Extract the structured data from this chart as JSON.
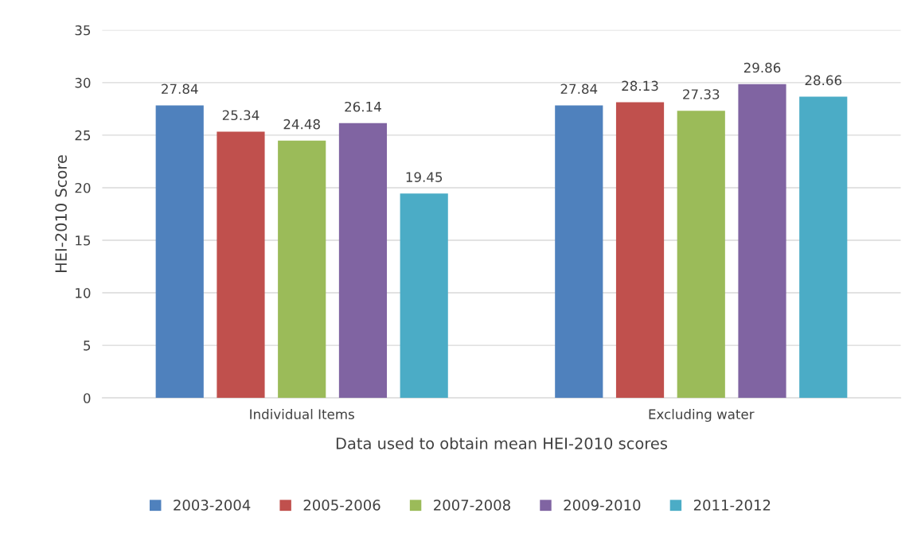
{
  "chart_data": {
    "type": "bar",
    "xlabel": "Data used to obtain mean HEI-2010 scores",
    "ylabel": "HEI-2010 Score",
    "categories": [
      "Individual Items",
      "Excluding water"
    ],
    "series": [
      {
        "name": "2003-2004",
        "color": "#4f81bd",
        "values": [
          27.84,
          27.84
        ]
      },
      {
        "name": "2005-2006",
        "color": "#c0504d",
        "values": [
          25.34,
          28.13
        ]
      },
      {
        "name": "2007-2008",
        "color": "#9bbb59",
        "values": [
          24.48,
          27.33
        ]
      },
      {
        "name": "2009-2010",
        "color": "#8064a2",
        "values": [
          26.14,
          29.86
        ]
      },
      {
        "name": "2011-2012",
        "color": "#4bacc6",
        "values": [
          19.45,
          28.66
        ]
      }
    ],
    "ylim": [
      0,
      35
    ],
    "yticks": [
      0,
      5,
      10,
      15,
      20,
      25,
      30,
      35
    ],
    "grid": "y",
    "legend": "bottom",
    "data_labels": true
  }
}
